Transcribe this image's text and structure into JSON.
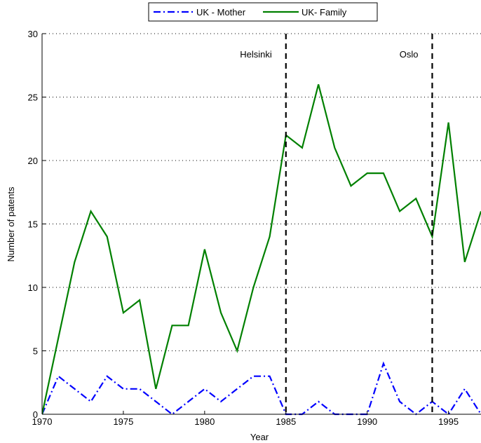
{
  "chart_data": {
    "type": "line",
    "title": "",
    "xlabel": "Year",
    "ylabel": "Number of patents",
    "xlim": [
      1970,
      1997
    ],
    "ylim": [
      0,
      30
    ],
    "x_ticks": [
      "1970",
      "1975",
      "1980",
      "1985",
      "1990",
      "1995"
    ],
    "y_ticks": [
      "0",
      "5",
      "10",
      "15",
      "20",
      "25",
      "30"
    ],
    "grid": "horizontal dotted",
    "legend_placement": "top-center",
    "x": [
      1970,
      1971,
      1972,
      1973,
      1974,
      1975,
      1976,
      1977,
      1978,
      1979,
      1980,
      1981,
      1982,
      1983,
      1984,
      1985,
      1986,
      1987,
      1988,
      1989,
      1990,
      1991,
      1992,
      1993,
      1994,
      1995,
      1996,
      1997
    ],
    "series": [
      {
        "name": "UK - Mother",
        "color": "#0000ff",
        "style": "dash-dot",
        "values": [
          0,
          3,
          2,
          1,
          3,
          2,
          2,
          1,
          0,
          1,
          2,
          1,
          2,
          3,
          3,
          0,
          0,
          1,
          0,
          0,
          0,
          4,
          1,
          0,
          1,
          0,
          2,
          0
        ]
      },
      {
        "name": "UK- Family",
        "color": "#008000",
        "style": "solid",
        "values": [
          0,
          6,
          12,
          16,
          14,
          8,
          9,
          2,
          7,
          7,
          13,
          8,
          5,
          10,
          14,
          22,
          21,
          26,
          21,
          18,
          19,
          19,
          16,
          17,
          14,
          23,
          12,
          16
        ]
      }
    ],
    "annotations": [
      {
        "label": "Helsinki",
        "x": 1985,
        "style": "dashed vertical line"
      },
      {
        "label": "Oslo",
        "x": 1994,
        "style": "dashed vertical line"
      }
    ]
  }
}
